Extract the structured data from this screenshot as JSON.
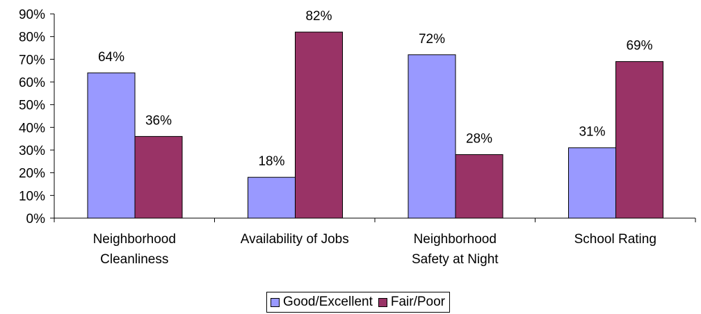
{
  "chart_data": {
    "type": "bar",
    "title": "",
    "xlabel": "",
    "ylabel": "",
    "ylim": [
      0,
      90
    ],
    "y_ticks": [
      "0%",
      "10%",
      "20%",
      "30%",
      "40%",
      "50%",
      "60%",
      "70%",
      "80%",
      "90%"
    ],
    "categories": [
      [
        "Neighborhood",
        "Cleanliness"
      ],
      [
        "Availability of Jobs"
      ],
      [
        "Neighborhood",
        "Safety at Night"
      ],
      [
        "School Rating"
      ]
    ],
    "series": [
      {
        "name": "Good/Excellent",
        "color": "#9999FF",
        "values": [
          64,
          18,
          72,
          31
        ],
        "labels": [
          "64%",
          "18%",
          "72%",
          "31%"
        ]
      },
      {
        "name": "Fair/Poor",
        "color": "#993366",
        "values": [
          36,
          82,
          28,
          69
        ],
        "labels": [
          "36%",
          "82%",
          "28%",
          "69%"
        ]
      }
    ],
    "grid": false,
    "legend_position": "bottom"
  }
}
